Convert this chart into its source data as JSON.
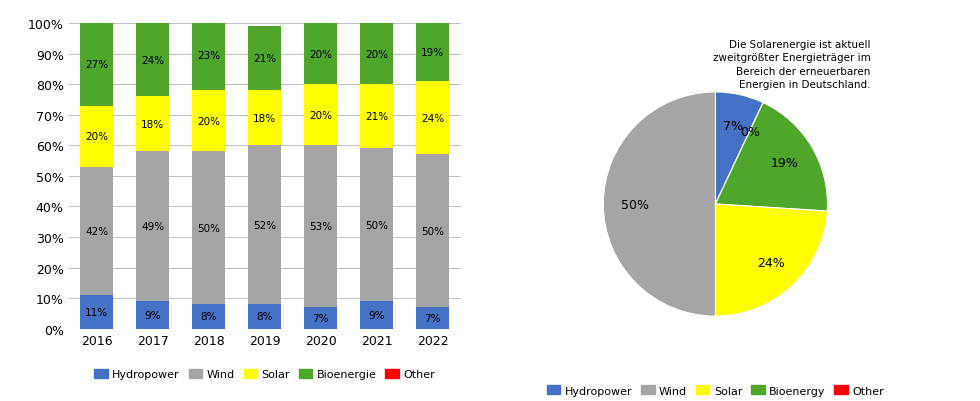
{
  "years": [
    "2016",
    "2017",
    "2018",
    "2019",
    "2020",
    "2021",
    "2022"
  ],
  "bar_data": {
    "Hydropower": [
      11,
      9,
      8,
      8,
      7,
      9,
      7
    ],
    "Wind": [
      42,
      49,
      50,
      52,
      53,
      50,
      50
    ],
    "Solar": [
      20,
      18,
      20,
      18,
      20,
      21,
      24
    ],
    "Bioenergie": [
      27,
      24,
      23,
      21,
      20,
      20,
      19
    ],
    "Other": [
      0,
      0,
      0,
      0,
      0,
      0,
      0
    ]
  },
  "bar_colors": {
    "Hydropower": "#4472C4",
    "Wind": "#A5A5A5",
    "Solar": "#FFFF00",
    "Bioenergie": "#4EA72A",
    "Other": "#FF0000"
  },
  "pie_data": {
    "Hydropower": 7,
    "Wind": 50,
    "Solar": 24,
    "Bioenergy": 19,
    "Other": 0
  },
  "pie_colors": {
    "Hydropower": "#4472C4",
    "Wind": "#A5A5A5",
    "Solar": "#FFFF00",
    "Bioenergy": "#4EA72A",
    "Other": "#FF0000"
  },
  "pie_annotation": "Die Solarenergie ist aktuell\nzweitgrößter Energieträger im\nBereich der erneuerbaren\nEnergien in Deutschland.",
  "bar_legend_labels": [
    "Hydropower",
    "Wind",
    "Solar",
    "Bioenergie",
    "Other"
  ],
  "pie_legend_labels": [
    "Hydropower",
    "Wind",
    "Solar",
    "Bioenergy",
    "Other"
  ],
  "ytick_labels": [
    "0%",
    "10%",
    "20%",
    "30%",
    "40%",
    "50%",
    "60%",
    "70%",
    "80%",
    "90%",
    "100%"
  ],
  "background_color": "#FFFFFF"
}
